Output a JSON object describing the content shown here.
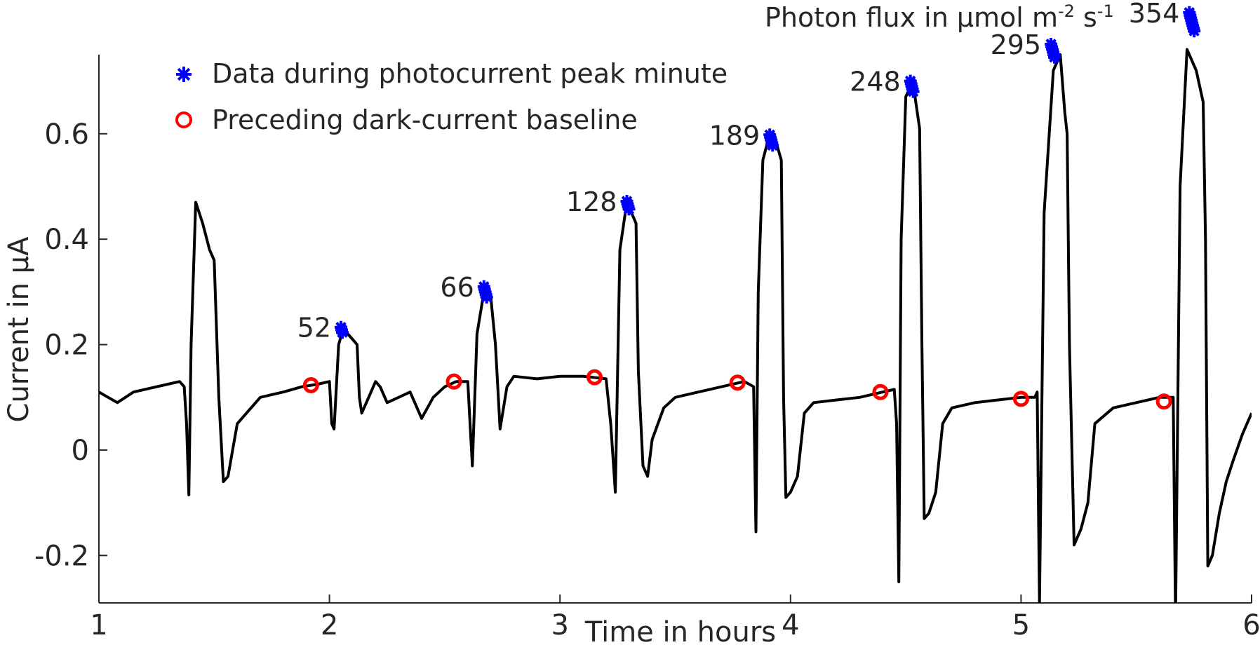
{
  "chart_data": {
    "type": "line",
    "xlabel": "Time in hours",
    "ylabel": "Current in μA",
    "xlim": [
      1,
      6
    ],
    "ylim": [
      -0.29,
      0.75
    ],
    "xticks": [
      1,
      2,
      3,
      4,
      5,
      6
    ],
    "xtick_labels": [
      "1",
      "2",
      "3",
      "4",
      "5",
      "6"
    ],
    "yticks": [
      -0.2,
      0,
      0.2,
      0.4,
      0.6
    ],
    "ytick_labels": [
      "-0.2",
      "0",
      "0.2",
      "0.4",
      "0.6"
    ],
    "grid": false,
    "legend_position": "top-left",
    "legend": [
      {
        "label": "Data during photocurrent peak minute",
        "marker": "asterisk",
        "color": "#0000ff"
      },
      {
        "label": "Preceding dark-current baseline",
        "marker": "circle",
        "color": "#ff0000"
      }
    ],
    "annotation_title": "Photon flux in μmol m",
    "annotation_units": {
      "sup1": "-2",
      "mid": " s",
      "sup2": "-1"
    },
    "series": [
      {
        "color": "#000000",
        "x": [
          1.0,
          1.04,
          1.08,
          1.15,
          1.25,
          1.35,
          1.37,
          1.38,
          1.39,
          1.4,
          1.42,
          1.45,
          1.48,
          1.5,
          1.52,
          1.54,
          1.56,
          1.6,
          1.7,
          1.8,
          1.88,
          1.95,
          2.0,
          2.01,
          2.02,
          2.04,
          2.06,
          2.1,
          2.12,
          2.13,
          2.14,
          2.17,
          2.2,
          2.22,
          2.25,
          2.3,
          2.35,
          2.4,
          2.45,
          2.5,
          2.55,
          2.6,
          2.61,
          2.62,
          2.64,
          2.67,
          2.7,
          2.72,
          2.74,
          2.77,
          2.8,
          2.9,
          3.0,
          3.1,
          3.2,
          3.22,
          3.24,
          3.26,
          3.29,
          3.32,
          3.33,
          3.34,
          3.36,
          3.38,
          3.4,
          3.45,
          3.5,
          3.6,
          3.7,
          3.8,
          3.84,
          3.85,
          3.86,
          3.88,
          3.91,
          3.94,
          3.96,
          3.97,
          3.98,
          4.0,
          4.03,
          4.06,
          4.1,
          4.2,
          4.3,
          4.4,
          4.45,
          4.46,
          4.47,
          4.48,
          4.5,
          4.53,
          4.56,
          4.57,
          4.58,
          4.6,
          4.63,
          4.66,
          4.7,
          4.8,
          4.9,
          5.0,
          5.06,
          5.07,
          5.08,
          5.1,
          5.14,
          5.17,
          5.19,
          5.2,
          5.21,
          5.23,
          5.26,
          5.29,
          5.32,
          5.4,
          5.5,
          5.6,
          5.66,
          5.67,
          5.69,
          5.72,
          5.76,
          5.79,
          5.8,
          5.81,
          5.83,
          5.86,
          5.89,
          5.92,
          5.96,
          6.0
        ],
        "y": [
          0.11,
          0.1,
          0.09,
          0.11,
          0.12,
          0.13,
          0.12,
          0.05,
          -0.085,
          0.2,
          0.47,
          0.43,
          0.38,
          0.36,
          0.1,
          -0.06,
          -0.05,
          0.05,
          0.1,
          0.11,
          0.12,
          0.125,
          0.13,
          0.05,
          0.04,
          0.2,
          0.23,
          0.21,
          0.2,
          0.1,
          0.07,
          0.1,
          0.13,
          0.12,
          0.09,
          0.1,
          0.11,
          0.06,
          0.1,
          0.12,
          0.13,
          0.13,
          0.05,
          -0.03,
          0.22,
          0.3,
          0.29,
          0.2,
          0.04,
          0.12,
          0.14,
          0.135,
          0.14,
          0.14,
          0.135,
          0.05,
          -0.08,
          0.38,
          0.47,
          0.44,
          0.43,
          0.15,
          -0.03,
          -0.05,
          0.02,
          0.08,
          0.1,
          0.11,
          0.12,
          0.13,
          0.12,
          -0.155,
          0.3,
          0.55,
          0.6,
          0.58,
          0.55,
          0.1,
          -0.09,
          -0.08,
          -0.05,
          0.07,
          0.09,
          0.095,
          0.1,
          0.11,
          0.115,
          0.05,
          -0.25,
          0.4,
          0.67,
          0.7,
          0.61,
          0.2,
          -0.13,
          -0.12,
          -0.08,
          0.05,
          0.08,
          0.09,
          0.095,
          0.1,
          0.1,
          0.11,
          -0.29,
          0.45,
          0.72,
          0.75,
          0.64,
          0.6,
          0.2,
          -0.18,
          -0.15,
          -0.1,
          0.05,
          0.08,
          0.09,
          0.1,
          0.1,
          -0.32,
          0.5,
          0.76,
          0.72,
          0.66,
          0.4,
          -0.22,
          -0.2,
          -0.12,
          -0.06,
          -0.02,
          0.03,
          0.07
        ]
      }
    ],
    "peak_markers": [
      {
        "label": "52",
        "x": 2.05,
        "y": 0.233,
        "n": 3
      },
      {
        "label": "66",
        "x": 2.67,
        "y": 0.31,
        "n": 5
      },
      {
        "label": "128",
        "x": 3.29,
        "y": 0.472,
        "n": 4
      },
      {
        "label": "189",
        "x": 3.91,
        "y": 0.598,
        "n": 5
      },
      {
        "label": "248",
        "x": 4.52,
        "y": 0.7,
        "n": 5
      },
      {
        "label": "295",
        "x": 5.13,
        "y": 0.77,
        "n": 6
      },
      {
        "label": "354",
        "x": 5.73,
        "y": 0.83,
        "n": 8
      }
    ],
    "baseline_markers": [
      {
        "x": 1.92,
        "y": 0.123
      },
      {
        "x": 2.54,
        "y": 0.13
      },
      {
        "x": 3.15,
        "y": 0.138
      },
      {
        "x": 3.77,
        "y": 0.128
      },
      {
        "x": 4.39,
        "y": 0.11
      },
      {
        "x": 5.0,
        "y": 0.097
      },
      {
        "x": 5.62,
        "y": 0.092
      }
    ]
  }
}
